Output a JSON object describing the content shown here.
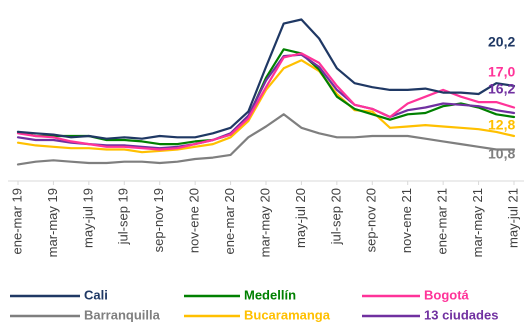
{
  "chart_data": {
    "type": "line",
    "x": [
      "ene-mar 19",
      "feb-abr 19",
      "mar-may 19",
      "abr-jun 19",
      "may-jul 19",
      "jun-ago 19",
      "jul-sep 19",
      "ago-oct 19",
      "sep-nov 19",
      "oct-dic 19",
      "nov-ene 20",
      "dic-feb 20",
      "ene-mar 20",
      "feb-abr 20",
      "mar-may 20",
      "abr-jun 20",
      "may-jul 20",
      "jun-ago 20",
      "jul-sep 20",
      "ago-oct 20",
      "sep-nov 20",
      "oct-dic 20",
      "nov-ene 21",
      "dic-feb 21",
      "ene-mar 21",
      "feb-abr 21",
      "mar-may 21",
      "abr-jun 21",
      "may-jul 21"
    ],
    "x_tick_labels": [
      "ene-mar 19",
      "mar-may 19",
      "may-jul 19",
      "jul-sep 19",
      "sep-nov 19",
      "nov-ene 20",
      "ene-mar 20",
      "mar-may 20",
      "may-jul 20",
      "jul-sep 20",
      "sep-nov 20",
      "nov-ene 21",
      "ene-mar 21",
      "mar-may 21",
      "may-jul 21"
    ],
    "ylim": [
      6,
      32
    ],
    "grid": false,
    "legend_position": "bottom",
    "series": [
      {
        "name": "Cali",
        "color": "#1f3864",
        "end_label": "20,2",
        "values": [
          13.4,
          13.2,
          13.0,
          12.6,
          12.8,
          12.4,
          12.6,
          12.4,
          12.8,
          12.6,
          12.6,
          13.2,
          14.0,
          16.4,
          23.0,
          29.4,
          30.0,
          27.2,
          22.8,
          20.6,
          20.0,
          19.6,
          19.6,
          19.8,
          19.2,
          19.2,
          19.0,
          20.6,
          20.2
        ]
      },
      {
        "name": "Medellín",
        "color": "#008000",
        "end_label": null,
        "values": [
          13.4,
          12.8,
          12.8,
          12.8,
          12.8,
          12.2,
          12.2,
          12.0,
          11.6,
          11.6,
          12.0,
          12.2,
          13.0,
          15.6,
          21.4,
          25.6,
          25.0,
          22.6,
          18.6,
          16.8,
          16.0,
          15.2,
          16.0,
          16.2,
          17.2,
          17.6,
          17.0,
          16.0,
          15.6
        ]
      },
      {
        "name": "Bogotá",
        "color": "#ff3399",
        "end_label": "17,0",
        "values": [
          13.2,
          12.8,
          12.6,
          12.0,
          11.6,
          11.2,
          11.2,
          11.0,
          10.8,
          11.0,
          11.6,
          12.2,
          13.0,
          15.4,
          20.0,
          24.4,
          25.0,
          23.6,
          20.2,
          17.4,
          16.8,
          15.6,
          17.6,
          18.6,
          19.6,
          18.6,
          17.8,
          17.8,
          17.0
        ]
      },
      {
        "name": "Barranquilla",
        "color": "#7f7f7f",
        "end_label": "10,8",
        "values": [
          8.6,
          9.0,
          9.2,
          9.0,
          8.8,
          8.8,
          9.0,
          9.0,
          8.8,
          9.0,
          9.4,
          9.6,
          10.0,
          12.6,
          14.2,
          16.0,
          14.0,
          13.2,
          12.6,
          12.6,
          12.8,
          12.8,
          12.8,
          12.4,
          12.0,
          11.6,
          11.2,
          10.8,
          10.8
        ]
      },
      {
        "name": "Bucaramanga",
        "color": "#ffc000",
        "end_label": "12,8",
        "values": [
          11.8,
          11.4,
          11.2,
          11.0,
          11.0,
          10.8,
          10.8,
          10.4,
          10.6,
          10.8,
          11.2,
          11.6,
          12.6,
          15.0,
          19.6,
          22.8,
          24.0,
          22.4,
          19.0,
          16.6,
          16.4,
          14.0,
          14.2,
          14.4,
          14.2,
          14.0,
          13.8,
          13.4,
          12.8
        ]
      },
      {
        "name": "13 ciudades",
        "color": "#7030a0",
        "end_label": "16,2",
        "values": [
          12.6,
          12.2,
          12.2,
          11.8,
          11.6,
          11.4,
          11.4,
          11.2,
          11.0,
          11.2,
          11.6,
          12.2,
          13.2,
          15.8,
          21.0,
          24.6,
          24.8,
          23.0,
          19.6,
          17.4,
          16.8,
          15.6,
          16.6,
          17.0,
          17.6,
          17.4,
          17.2,
          16.6,
          16.2
        ]
      }
    ]
  }
}
